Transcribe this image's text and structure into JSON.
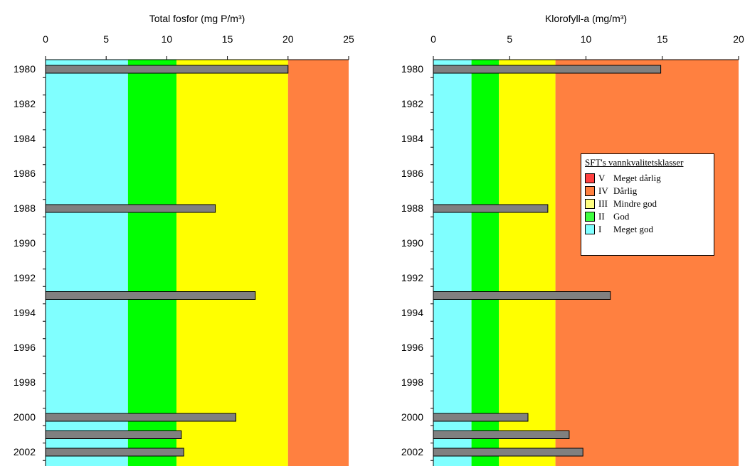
{
  "chart_data": [
    {
      "type": "bar",
      "orientation": "horizontal",
      "title": "Total fosfor (mg P/m³)",
      "xlim": [
        0,
        25
      ],
      "x_ticks": [
        "0",
        "5",
        "10",
        "15",
        "20",
        "25"
      ],
      "y_ticks": [
        "1980",
        "1982",
        "1984",
        "1986",
        "1988",
        "1990",
        "1992",
        "1994",
        "1996",
        "1998",
        "2000",
        "2002"
      ],
      "categories": [
        "1980",
        "1988",
        "1993",
        "2000",
        "2001",
        "2002"
      ],
      "values": [
        20.0,
        14.0,
        17.3,
        15.7,
        11.2,
        11.4
      ],
      "bar_color": "#808080",
      "class_bands": [
        {
          "class": "I",
          "from": 0,
          "to": 6.8,
          "color": "#80ffff"
        },
        {
          "class": "II",
          "from": 6.8,
          "to": 10.8,
          "color": "#00ff00"
        },
        {
          "class": "III",
          "from": 10.8,
          "to": 20,
          "color": "#ffff00"
        },
        {
          "class": "IV",
          "from": 20,
          "to": 25,
          "color": "#ff8040"
        }
      ]
    },
    {
      "type": "bar",
      "orientation": "horizontal",
      "title": "Klorofyll-a (mg/m³)",
      "xlim": [
        0,
        20
      ],
      "x_ticks": [
        "0",
        "5",
        "10",
        "15",
        "20"
      ],
      "y_ticks": [
        "1980",
        "1982",
        "1984",
        "1986",
        "1988",
        "1990",
        "1992",
        "1994",
        "1996",
        "1998",
        "2000",
        "2002"
      ],
      "categories": [
        "1980",
        "1988",
        "1993",
        "2000",
        "2001",
        "2002"
      ],
      "values": [
        14.9,
        7.5,
        11.6,
        6.2,
        8.9,
        9.8
      ],
      "bar_color": "#808080",
      "class_bands": [
        {
          "class": "I",
          "from": 0,
          "to": 2.5,
          "color": "#80ffff"
        },
        {
          "class": "II",
          "from": 2.5,
          "to": 4.3,
          "color": "#00ff00"
        },
        {
          "class": "III",
          "from": 4.3,
          "to": 8,
          "color": "#ffff00"
        },
        {
          "class": "IV",
          "from": 8,
          "to": 20,
          "color": "#ff8040"
        }
      ]
    }
  ],
  "legend": {
    "title": "SFT's vannkvalitetsklasser",
    "items": [
      {
        "roman": "V",
        "label": "Meget dårlig",
        "color": "#ff4040"
      },
      {
        "roman": "IV",
        "label": "Dårlig",
        "color": "#ff8040"
      },
      {
        "roman": "III",
        "label": "Mindre god",
        "color": "#ffff80"
      },
      {
        "roman": "II",
        "label": "God",
        "color": "#40ff40"
      },
      {
        "roman": "I",
        "label": "Meget god",
        "color": "#80ffff"
      }
    ]
  }
}
